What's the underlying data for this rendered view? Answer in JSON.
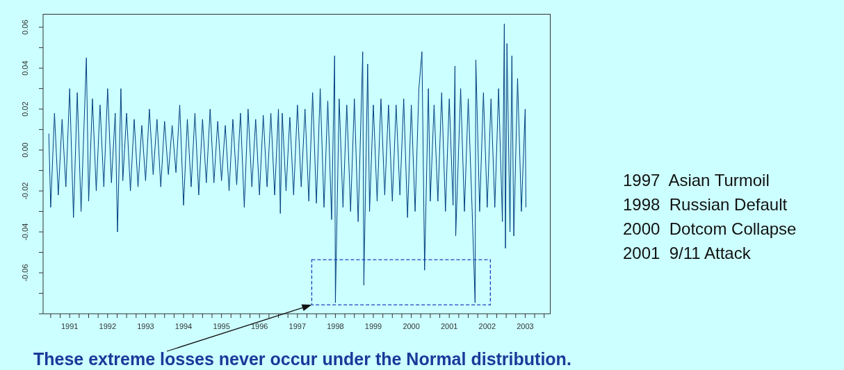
{
  "chart_data": {
    "type": "line",
    "annotations": [
      "1997  Asian Turmoil",
      "1998  Russian Default",
      "2000  Dotcom Collapse",
      "2001  9/11 Attack",
      "These extreme losses never occur under the Normal distribution."
    ],
    "x": [
      1990.45,
      1990.5,
      1990.6,
      1990.7,
      1990.8,
      1990.9,
      1991.0,
      1991.1,
      1991.2,
      1991.3,
      1991.44,
      1991.5,
      1991.6,
      1991.7,
      1991.8,
      1991.9,
      1992.0,
      1992.1,
      1992.2,
      1992.26,
      1992.35,
      1992.4,
      1992.5,
      1992.6,
      1992.7,
      1992.8,
      1992.9,
      1993.0,
      1993.1,
      1993.2,
      1993.3,
      1993.4,
      1993.5,
      1993.6,
      1993.7,
      1993.8,
      1993.9,
      1994.0,
      1994.1,
      1994.2,
      1994.3,
      1994.4,
      1994.5,
      1994.6,
      1994.7,
      1994.8,
      1994.9,
      1995.0,
      1995.1,
      1995.2,
      1995.3,
      1995.4,
      1995.5,
      1995.6,
      1995.7,
      1995.8,
      1995.9,
      1996.0,
      1996.1,
      1996.2,
      1996.3,
      1996.4,
      1996.5,
      1996.55,
      1996.6,
      1996.7,
      1996.8,
      1996.9,
      1997.0,
      1997.1,
      1997.2,
      1997.3,
      1997.4,
      1997.5,
      1997.6,
      1997.7,
      1997.8,
      1997.9,
      1997.98,
      1998.0,
      1998.1,
      1998.2,
      1998.3,
      1998.4,
      1998.5,
      1998.6,
      1998.72,
      1998.75,
      1998.85,
      1998.9,
      1999.0,
      1999.1,
      1999.2,
      1999.3,
      1999.4,
      1999.5,
      1999.6,
      1999.7,
      1999.8,
      1999.9,
      2000.0,
      2000.1,
      2000.2,
      2000.28,
      2000.35,
      2000.45,
      2000.5,
      2000.6,
      2000.7,
      2000.8,
      2000.9,
      2001.0,
      2001.1,
      2001.15,
      2001.17,
      2001.3,
      2001.4,
      2001.5,
      2001.6,
      2001.68,
      2001.7,
      2001.8,
      2001.9,
      2002.0,
      2002.1,
      2002.2,
      2002.3,
      2002.4,
      2002.45,
      2002.48,
      2002.52,
      2002.6,
      2002.65,
      2002.7,
      2002.8,
      2002.9,
      2003.0,
      2003.02
    ],
    "series": [
      {
        "color": "#003f7f",
        "values": [
          0.008,
          -0.028,
          0.018,
          -0.022,
          0.015,
          -0.018,
          0.03,
          -0.033,
          0.028,
          -0.03,
          0.045,
          -0.025,
          0.025,
          -0.02,
          0.022,
          -0.018,
          0.03,
          -0.016,
          0.018,
          -0.04,
          0.03,
          -0.015,
          0.018,
          -0.02,
          0.015,
          -0.018,
          0.012,
          -0.015,
          0.02,
          -0.012,
          0.015,
          -0.018,
          0.014,
          -0.012,
          0.012,
          -0.011,
          0.022,
          -0.027,
          0.015,
          -0.018,
          0.018,
          -0.022,
          0.015,
          -0.016,
          0.02,
          -0.016,
          0.014,
          -0.015,
          0.012,
          -0.02,
          0.015,
          -0.017,
          0.018,
          -0.028,
          0.02,
          -0.018,
          0.015,
          -0.022,
          0.017,
          -0.018,
          0.018,
          -0.022,
          0.02,
          -0.031,
          0.018,
          -0.02,
          0.016,
          -0.022,
          0.022,
          -0.018,
          0.02,
          -0.025,
          0.028,
          -0.026,
          0.03,
          -0.028,
          0.024,
          -0.034,
          0.046,
          -0.0746,
          0.025,
          -0.028,
          0.022,
          -0.03,
          0.025,
          -0.035,
          0.048,
          -0.066,
          0.042,
          -0.03,
          0.022,
          -0.025,
          0.025,
          -0.022,
          0.022,
          -0.025,
          0.022,
          -0.022,
          0.025,
          -0.033,
          0.022,
          -0.03,
          0.03,
          0.048,
          -0.0587,
          0.03,
          -0.025,
          0.022,
          -0.025,
          0.028,
          -0.03,
          0.025,
          -0.027,
          0.041,
          -0.042,
          0.03,
          -0.03,
          0.025,
          -0.028,
          -0.0746,
          0.044,
          -0.03,
          0.028,
          -0.028,
          0.025,
          -0.028,
          0.03,
          -0.035,
          0.0616,
          -0.048,
          0.052,
          -0.04,
          0.046,
          -0.042,
          0.035,
          -0.03,
          0.02,
          -0.028
        ]
      }
    ],
    "xlim": [
      1990.3,
      2003.67
    ],
    "xticks": [
      {
        "value": 1990.5,
        "label": null
      },
      {
        "value": 1990.75,
        "label": null
      },
      1991,
      {
        "value": 1991.25,
        "label": null
      },
      {
        "value": 1991.5,
        "label": null
      },
      {
        "value": 1991.75,
        "label": null
      },
      1992,
      {
        "value": 1992.25,
        "label": null
      },
      {
        "value": 1992.5,
        "label": null
      },
      {
        "value": 1992.75,
        "label": null
      },
      1993,
      {
        "value": 1993.25,
        "label": null
      },
      {
        "value": 1993.5,
        "label": null
      },
      {
        "value": 1993.75,
        "label": null
      },
      1994,
      {
        "value": 1994.25,
        "label": null
      },
      {
        "value": 1994.5,
        "label": null
      },
      {
        "value": 1994.75,
        "label": null
      },
      1995,
      {
        "value": 1995.25,
        "label": null
      },
      {
        "value": 1995.5,
        "label": null
      },
      {
        "value": 1995.75,
        "label": null
      },
      1996,
      {
        "value": 1996.25,
        "label": null
      },
      {
        "value": 1996.5,
        "label": null
      },
      {
        "value": 1996.75,
        "label": null
      },
      1997,
      {
        "value": 1997.25,
        "label": null
      },
      {
        "value": 1997.5,
        "label": null
      },
      {
        "value": 1997.75,
        "label": null
      },
      1998,
      {
        "value": 1998.25,
        "label": null
      },
      {
        "value": 1998.5,
        "label": null
      },
      {
        "value": 1998.75,
        "label": null
      },
      1999,
      {
        "value": 1999.25,
        "label": null
      },
      {
        "value": 1999.5,
        "label": null
      },
      {
        "value": 1999.75,
        "label": null
      },
      2000,
      {
        "value": 2000.25,
        "label": null
      },
      {
        "value": 2000.5,
        "label": null
      },
      {
        "value": 2000.75,
        "label": null
      },
      2001,
      {
        "value": 2001.25,
        "label": null
      },
      {
        "value": 2001.5,
        "label": null
      },
      {
        "value": 2001.75,
        "label": null
      },
      2002,
      {
        "value": 2002.25,
        "label": null
      },
      {
        "value": 2002.5,
        "label": null
      },
      {
        "value": 2002.75,
        "label": null
      },
      2003,
      {
        "value": 2003.25,
        "label": null
      },
      {
        "value": 2003.5,
        "label": null
      }
    ],
    "ylim": [
      -0.08,
      0.0665
    ],
    "yticks": [
      {
        "value": -0.08,
        "label": null
      },
      {
        "value": -0.07,
        "label": null
      },
      {
        "value": -0.06,
        "label": "-0.06"
      },
      {
        "value": -0.05,
        "label": null
      },
      {
        "value": -0.04,
        "label": "-0.04"
      },
      {
        "value": -0.03,
        "label": null
      },
      {
        "value": -0.02,
        "label": "-0.02"
      },
      {
        "value": -0.01,
        "label": null
      },
      {
        "value": 0,
        "label": "0.00"
      },
      {
        "value": 0.01,
        "label": null
      },
      {
        "value": 0.02,
        "label": "0.02"
      },
      {
        "value": 0.03,
        "label": null
      },
      {
        "value": 0.04,
        "label": "0.04"
      },
      {
        "value": 0.05,
        "label": null
      },
      {
        "value": 0.06,
        "label": "0.06"
      }
    ],
    "grid": false,
    "legend": false,
    "marker": "none",
    "line_style": "solid"
  }
}
